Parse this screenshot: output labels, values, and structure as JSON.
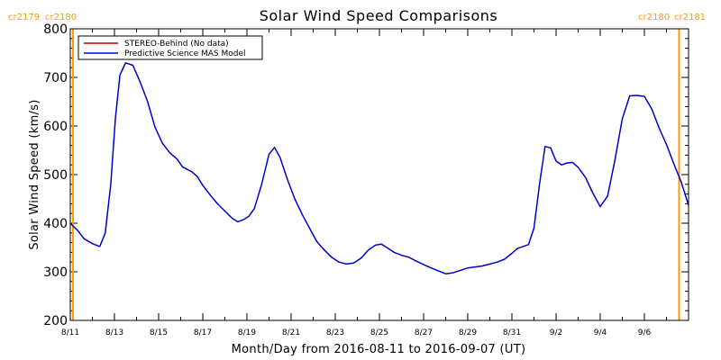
{
  "chart_data": {
    "type": "line",
    "title": "Solar Wind Speed Comparisons",
    "xlabel": "Month/Day from 2016-08-11 to 2016-09-07 (UT)",
    "ylabel": "Solar Wind Speed (km/s)",
    "xlim": [
      "2016-08-11",
      "2016-09-08"
    ],
    "ylim": [
      200,
      800
    ],
    "x_ticks": [
      {
        "date": "2016-08-11",
        "label": "8/11"
      },
      {
        "date": "2016-08-13",
        "label": "8/13"
      },
      {
        "date": "2016-08-15",
        "label": "8/15"
      },
      {
        "date": "2016-08-17",
        "label": "8/17"
      },
      {
        "date": "2016-08-19",
        "label": "8/19"
      },
      {
        "date": "2016-08-21",
        "label": "8/21"
      },
      {
        "date": "2016-08-23",
        "label": "8/23"
      },
      {
        "date": "2016-08-25",
        "label": "8/25"
      },
      {
        "date": "2016-08-27",
        "label": "8/27"
      },
      {
        "date": "2016-08-29",
        "label": "8/29"
      },
      {
        "date": "2016-08-31",
        "label": "8/31"
      },
      {
        "date": "2016-09-02",
        "label": "9/2"
      },
      {
        "date": "2016-09-04",
        "label": "9/4"
      },
      {
        "date": "2016-09-06",
        "label": "9/6"
      }
    ],
    "y_ticks": [
      {
        "value": 200,
        "label": "200"
      },
      {
        "value": 300,
        "label": "300"
      },
      {
        "value": 400,
        "label": "400"
      },
      {
        "value": 500,
        "label": "500"
      },
      {
        "value": 600,
        "label": "600"
      },
      {
        "value": 700,
        "label": "700"
      },
      {
        "value": 800,
        "label": "800"
      }
    ],
    "legend": {
      "position": "top-left",
      "entries": [
        {
          "name": "STEREO-Behind (No data)",
          "color": "#c00000"
        },
        {
          "name": "Predictive Science MAS Model",
          "color": "#0000cc"
        }
      ]
    },
    "carrington_markers": [
      {
        "date": "2016-08-11",
        "label_left": "cr2179",
        "label_right": "cr2180",
        "side": "left",
        "color": "#ff9900"
      },
      {
        "date": "2016-09-07",
        "label_left": "cr2180",
        "label_right": "cr2181",
        "side": "right",
        "color": "#ff9900"
      }
    ],
    "series": [
      {
        "name": "Predictive Science MAS Model",
        "color": "#0000cc",
        "points": [
          [
            "2016-08-11T00:00",
            400
          ],
          [
            "2016-08-11T08:00",
            385
          ],
          [
            "2016-08-11T15:00",
            368
          ],
          [
            "2016-08-12T00:00",
            358
          ],
          [
            "2016-08-12T08:00",
            352
          ],
          [
            "2016-08-12T14:00",
            380
          ],
          [
            "2016-08-12T20:00",
            480
          ],
          [
            "2016-08-13T01:00",
            615
          ],
          [
            "2016-08-13T06:00",
            705
          ],
          [
            "2016-08-13T12:00",
            730
          ],
          [
            "2016-08-13T20:00",
            725
          ],
          [
            "2016-08-14T04:00",
            690
          ],
          [
            "2016-08-14T12:00",
            650
          ],
          [
            "2016-08-14T20:00",
            598
          ],
          [
            "2016-08-15T04:00",
            565
          ],
          [
            "2016-08-15T12:00",
            545
          ],
          [
            "2016-08-15T20:00",
            532
          ],
          [
            "2016-08-16T02:00",
            516
          ],
          [
            "2016-08-16T12:00",
            506
          ],
          [
            "2016-08-16T18:00",
            496
          ],
          [
            "2016-08-17T00:00",
            478
          ],
          [
            "2016-08-17T08:00",
            458
          ],
          [
            "2016-08-17T16:00",
            440
          ],
          [
            "2016-08-18T00:00",
            425
          ],
          [
            "2016-08-18T08:00",
            410
          ],
          [
            "2016-08-18T14:00",
            403
          ],
          [
            "2016-08-18T20:00",
            407
          ],
          [
            "2016-08-19T02:00",
            414
          ],
          [
            "2016-08-19T08:00",
            430
          ],
          [
            "2016-08-19T16:00",
            480
          ],
          [
            "2016-08-20T00:00",
            542
          ],
          [
            "2016-08-20T06:00",
            556
          ],
          [
            "2016-08-20T12:00",
            535
          ],
          [
            "2016-08-20T20:00",
            490
          ],
          [
            "2016-08-21T04:00",
            450
          ],
          [
            "2016-08-21T12:00",
            418
          ],
          [
            "2016-08-21T20:00",
            390
          ],
          [
            "2016-08-22T04:00",
            362
          ],
          [
            "2016-08-22T12:00",
            345
          ],
          [
            "2016-08-22T20:00",
            330
          ],
          [
            "2016-08-23T04:00",
            320
          ],
          [
            "2016-08-23T12:00",
            316
          ],
          [
            "2016-08-23T20:00",
            318
          ],
          [
            "2016-08-24T04:00",
            328
          ],
          [
            "2016-08-24T12:00",
            345
          ],
          [
            "2016-08-24T20:00",
            355
          ],
          [
            "2016-08-25T02:00",
            357
          ],
          [
            "2016-08-25T08:00",
            350
          ],
          [
            "2016-08-25T16:00",
            340
          ],
          [
            "2016-08-26T00:00",
            334
          ],
          [
            "2016-08-26T08:00",
            330
          ],
          [
            "2016-08-26T16:00",
            322
          ],
          [
            "2016-08-27T00:00",
            315
          ],
          [
            "2016-08-27T08:00",
            308
          ],
          [
            "2016-08-27T16:00",
            302
          ],
          [
            "2016-08-28T00:00",
            296
          ],
          [
            "2016-08-28T08:00",
            298
          ],
          [
            "2016-08-28T16:00",
            303
          ],
          [
            "2016-08-29T00:00",
            308
          ],
          [
            "2016-08-29T08:00",
            310
          ],
          [
            "2016-08-29T16:00",
            312
          ],
          [
            "2016-08-30T00:00",
            316
          ],
          [
            "2016-08-30T08:00",
            320
          ],
          [
            "2016-08-30T16:00",
            326
          ],
          [
            "2016-08-31T00:00",
            338
          ],
          [
            "2016-08-31T06:00",
            348
          ],
          [
            "2016-08-31T12:00",
            352
          ],
          [
            "2016-08-31T18:00",
            356
          ],
          [
            "2016-09-01T00:00",
            390
          ],
          [
            "2016-09-01T06:00",
            480
          ],
          [
            "2016-09-01T12:00",
            558
          ],
          [
            "2016-09-01T18:00",
            555
          ],
          [
            "2016-09-02T00:00",
            528
          ],
          [
            "2016-09-02T06:00",
            520
          ],
          [
            "2016-09-02T12:00",
            524
          ],
          [
            "2016-09-02T18:00",
            525
          ],
          [
            "2016-09-03T00:00",
            515
          ],
          [
            "2016-09-03T08:00",
            494
          ],
          [
            "2016-09-03T16:00",
            462
          ],
          [
            "2016-09-04T00:00",
            434
          ],
          [
            "2016-09-04T08:00",
            456
          ],
          [
            "2016-09-04T16:00",
            530
          ],
          [
            "2016-09-05T00:00",
            615
          ],
          [
            "2016-09-05T08:00",
            662
          ],
          [
            "2016-09-05T16:00",
            663
          ],
          [
            "2016-09-06T00:00",
            661
          ],
          [
            "2016-09-06T08:00",
            635
          ],
          [
            "2016-09-06T16:00",
            596
          ],
          [
            "2016-09-07T00:00",
            562
          ],
          [
            "2016-09-07T08:00",
            522
          ],
          [
            "2016-09-07T16:00",
            485
          ],
          [
            "2016-09-08T00:00",
            437
          ]
        ]
      }
    ]
  }
}
